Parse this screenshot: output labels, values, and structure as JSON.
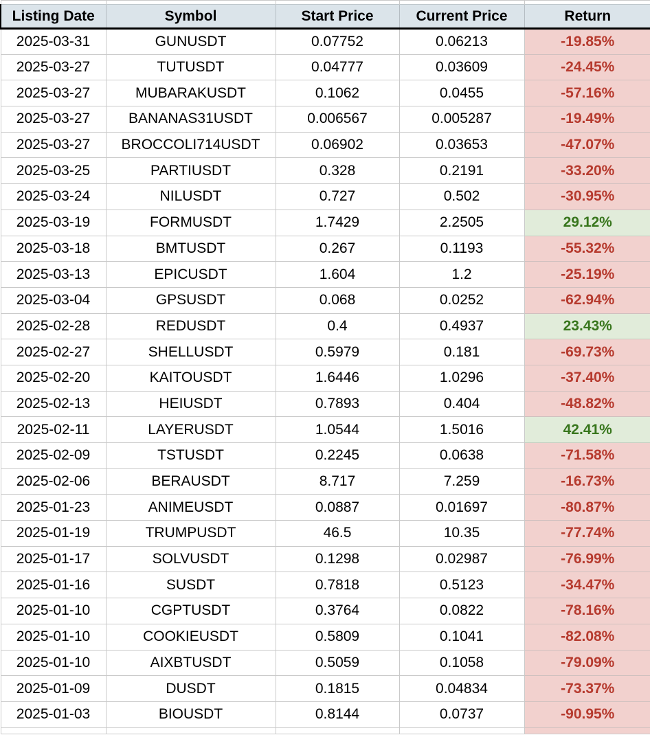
{
  "table": {
    "columns": [
      {
        "key": "date",
        "label": "Listing Date"
      },
      {
        "key": "symbol",
        "label": "Symbol"
      },
      {
        "key": "start",
        "label": "Start Price"
      },
      {
        "key": "current",
        "label": "Current Price"
      },
      {
        "key": "return",
        "label": "Return"
      }
    ],
    "rows": [
      {
        "date": "2025-03-31",
        "symbol": "GUNUSDT",
        "start": "0.07752",
        "current": "0.06213",
        "return": "-19.85%",
        "direction": "down"
      },
      {
        "date": "2025-03-27",
        "symbol": "TUTUSDT",
        "start": "0.04777",
        "current": "0.03609",
        "return": "-24.45%",
        "direction": "down"
      },
      {
        "date": "2025-03-27",
        "symbol": "MUBARAKUSDT",
        "start": "0.1062",
        "current": "0.0455",
        "return": "-57.16%",
        "direction": "down"
      },
      {
        "date": "2025-03-27",
        "symbol": "BANANAS31USDT",
        "start": "0.006567",
        "current": "0.005287",
        "return": "-19.49%",
        "direction": "down"
      },
      {
        "date": "2025-03-27",
        "symbol": "BROCCOLI714USDT",
        "start": "0.06902",
        "current": "0.03653",
        "return": "-47.07%",
        "direction": "down"
      },
      {
        "date": "2025-03-25",
        "symbol": "PARTIUSDT",
        "start": "0.328",
        "current": "0.2191",
        "return": "-33.20%",
        "direction": "down"
      },
      {
        "date": "2025-03-24",
        "symbol": "NILUSDT",
        "start": "0.727",
        "current": "0.502",
        "return": "-30.95%",
        "direction": "down"
      },
      {
        "date": "2025-03-19",
        "symbol": "FORMUSDT",
        "start": "1.7429",
        "current": "2.2505",
        "return": "29.12%",
        "direction": "up"
      },
      {
        "date": "2025-03-18",
        "symbol": "BMTUSDT",
        "start": "0.267",
        "current": "0.1193",
        "return": "-55.32%",
        "direction": "down"
      },
      {
        "date": "2025-03-13",
        "symbol": "EPICUSDT",
        "start": "1.604",
        "current": "1.2",
        "return": "-25.19%",
        "direction": "down"
      },
      {
        "date": "2025-03-04",
        "symbol": "GPSUSDT",
        "start": "0.068",
        "current": "0.0252",
        "return": "-62.94%",
        "direction": "down"
      },
      {
        "date": "2025-02-28",
        "symbol": "REDUSDT",
        "start": "0.4",
        "current": "0.4937",
        "return": "23.43%",
        "direction": "up"
      },
      {
        "date": "2025-02-27",
        "symbol": "SHELLUSDT",
        "start": "0.5979",
        "current": "0.181",
        "return": "-69.73%",
        "direction": "down"
      },
      {
        "date": "2025-02-20",
        "symbol": "KAITOUSDT",
        "start": "1.6446",
        "current": "1.0296",
        "return": "-37.40%",
        "direction": "down"
      },
      {
        "date": "2025-02-13",
        "symbol": "HEIUSDT",
        "start": "0.7893",
        "current": "0.404",
        "return": "-48.82%",
        "direction": "down"
      },
      {
        "date": "2025-02-11",
        "symbol": "LAYERUSDT",
        "start": "1.0544",
        "current": "1.5016",
        "return": "42.41%",
        "direction": "up"
      },
      {
        "date": "2025-02-09",
        "symbol": "TSTUSDT",
        "start": "0.2245",
        "current": "0.0638",
        "return": "-71.58%",
        "direction": "down"
      },
      {
        "date": "2025-02-06",
        "symbol": "BERAUSDT",
        "start": "8.717",
        "current": "7.259",
        "return": "-16.73%",
        "direction": "down"
      },
      {
        "date": "2025-01-23",
        "symbol": "ANIMEUSDT",
        "start": "0.0887",
        "current": "0.01697",
        "return": "-80.87%",
        "direction": "down"
      },
      {
        "date": "2025-01-19",
        "symbol": "TRUMPUSDT",
        "start": "46.5",
        "current": "10.35",
        "return": "-77.74%",
        "direction": "down"
      },
      {
        "date": "2025-01-17",
        "symbol": "SOLVUSDT",
        "start": "0.1298",
        "current": "0.02987",
        "return": "-76.99%",
        "direction": "down"
      },
      {
        "date": "2025-01-16",
        "symbol": "SUSDT",
        "start": "0.7818",
        "current": "0.5123",
        "return": "-34.47%",
        "direction": "down"
      },
      {
        "date": "2025-01-10",
        "symbol": "CGPTUSDT",
        "start": "0.3764",
        "current": "0.0822",
        "return": "-78.16%",
        "direction": "down"
      },
      {
        "date": "2025-01-10",
        "symbol": "COOKIEUSDT",
        "start": "0.5809",
        "current": "0.1041",
        "return": "-82.08%",
        "direction": "down"
      },
      {
        "date": "2025-01-10",
        "symbol": "AIXBTUSDT",
        "start": "0.5059",
        "current": "0.1058",
        "return": "-79.09%",
        "direction": "down"
      },
      {
        "date": "2025-01-09",
        "symbol": "DUSDT",
        "start": "0.1815",
        "current": "0.04834",
        "return": "-73.37%",
        "direction": "down"
      },
      {
        "date": "2025-01-03",
        "symbol": "BIOUSDT",
        "start": "0.8144",
        "current": "0.0737",
        "return": "-90.95%",
        "direction": "down"
      }
    ]
  },
  "colors": {
    "header_bg": "#dbe4ea",
    "negative_bg": "#f2d1ce",
    "negative_text": "#b63a2e",
    "positive_bg": "#e1ecda",
    "positive_text": "#38761d",
    "gridline": "#c9c9c9",
    "header_rule": "#000000"
  }
}
